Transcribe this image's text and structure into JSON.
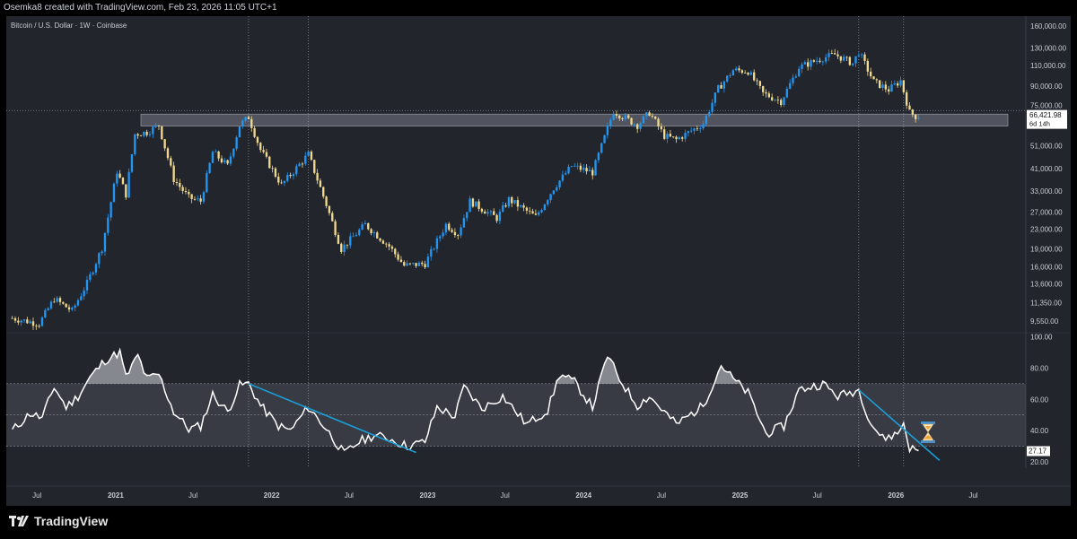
{
  "header": {
    "text": "Osemka8 created with TradingView.com, Feb 23, 2026 11:05 UTC+1"
  },
  "branding": {
    "logo_text": "TradingView"
  },
  "chart_data": [
    {
      "type": "candlestick",
      "legend": "Bitcoin / U.S. Dollar · 1W · Coinbase",
      "y_scale": "log",
      "y_ticks": [
        {
          "value": 160000,
          "label": "160,000.00"
        },
        {
          "value": 130000,
          "label": "130,000.00"
        },
        {
          "value": 110000,
          "label": "110,000.00"
        },
        {
          "value": 90000,
          "label": "90,000.00"
        },
        {
          "value": 75000,
          "label": "75,000.00"
        },
        {
          "value": 51000,
          "label": "51,000.00"
        },
        {
          "value": 41000,
          "label": "41,000.00"
        },
        {
          "value": 33000,
          "label": "33,000.00"
        },
        {
          "value": 27000,
          "label": "27,000.00"
        },
        {
          "value": 23000,
          "label": "23,000.00"
        },
        {
          "value": 19000,
          "label": "19,000.00"
        },
        {
          "value": 16000,
          "label": "16,000.00"
        },
        {
          "value": 13600,
          "label": "13,600.00"
        },
        {
          "value": 11350,
          "label": "11,350.00"
        },
        {
          "value": 9550,
          "label": "9,550.00"
        }
      ],
      "last_price": {
        "value": 66421.98,
        "label": "66,421.98",
        "countdown": "6d 14h"
      },
      "support_zone": {
        "from": 61500,
        "to": 69000
      },
      "colors": {
        "up": "#2196f3",
        "down": "#f0d98c",
        "zone": "#787b86"
      },
      "price_path": [
        {
          "date": "2020-05-04",
          "close": 9800
        },
        {
          "date": "2020-07-06",
          "close": 9300
        },
        {
          "date": "2020-08-10",
          "close": 11800
        },
        {
          "date": "2020-09-21",
          "close": 10500
        },
        {
          "date": "2020-10-26",
          "close": 13700
        },
        {
          "date": "2020-11-30",
          "close": 19200
        },
        {
          "date": "2021-01-04",
          "close": 40000
        },
        {
          "date": "2021-01-25",
          "close": 32000
        },
        {
          "date": "2021-02-15",
          "close": 57000
        },
        {
          "date": "2021-03-15",
          "close": 58000
        },
        {
          "date": "2021-04-12",
          "close": 62000
        },
        {
          "date": "2021-05-17",
          "close": 37000
        },
        {
          "date": "2021-06-21",
          "close": 31000
        },
        {
          "date": "2021-07-19",
          "close": 30000
        },
        {
          "date": "2021-08-16",
          "close": 48000
        },
        {
          "date": "2021-09-20",
          "close": 42000
        },
        {
          "date": "2021-10-18",
          "close": 62000
        },
        {
          "date": "2021-11-08",
          "close": 67000
        },
        {
          "date": "2021-12-06",
          "close": 49000
        },
        {
          "date": "2022-01-24",
          "close": 35000
        },
        {
          "date": "2022-03-28",
          "close": 47000
        },
        {
          "date": "2022-05-09",
          "close": 29000
        },
        {
          "date": "2022-06-13",
          "close": 19000
        },
        {
          "date": "2022-08-08",
          "close": 24000
        },
        {
          "date": "2022-10-03",
          "close": 19500
        },
        {
          "date": "2022-11-07",
          "close": 16200
        },
        {
          "date": "2022-12-26",
          "close": 16500
        },
        {
          "date": "2023-02-13",
          "close": 24000
        },
        {
          "date": "2023-03-13",
          "close": 22000
        },
        {
          "date": "2023-04-10",
          "close": 30000
        },
        {
          "date": "2023-06-12",
          "close": 25500
        },
        {
          "date": "2023-07-10",
          "close": 30500
        },
        {
          "date": "2023-09-11",
          "close": 25800
        },
        {
          "date": "2023-10-23",
          "close": 34000
        },
        {
          "date": "2023-12-04",
          "close": 42000
        },
        {
          "date": "2024-01-22",
          "close": 39500
        },
        {
          "date": "2024-03-11",
          "close": 71000
        },
        {
          "date": "2024-05-06",
          "close": 62000
        },
        {
          "date": "2024-06-03",
          "close": 70000
        },
        {
          "date": "2024-07-08",
          "close": 56000
        },
        {
          "date": "2024-08-05",
          "close": 54000
        },
        {
          "date": "2024-10-07",
          "close": 63000
        },
        {
          "date": "2024-11-11",
          "close": 88000
        },
        {
          "date": "2024-12-16",
          "close": 105000
        },
        {
          "date": "2025-01-20",
          "close": 104000
        },
        {
          "date": "2025-02-24",
          "close": 84000
        },
        {
          "date": "2025-04-07",
          "close": 78000
        },
        {
          "date": "2025-05-19",
          "close": 108000
        },
        {
          "date": "2025-07-14",
          "close": 118000
        },
        {
          "date": "2025-08-11",
          "close": 122000
        },
        {
          "date": "2025-09-22",
          "close": 112000
        },
        {
          "date": "2025-10-06",
          "close": 125000
        },
        {
          "date": "2025-11-10",
          "close": 94000
        },
        {
          "date": "2025-12-15",
          "close": 87000
        },
        {
          "date": "2026-01-12",
          "close": 95000
        },
        {
          "date": "2026-02-02",
          "close": 70000
        },
        {
          "date": "2026-02-23",
          "close": 66421.98
        }
      ]
    },
    {
      "type": "line",
      "indicator": "oscillator",
      "y_range": [
        20,
        100
      ],
      "y_ticks": [
        {
          "value": 100,
          "label": "100.00"
        },
        {
          "value": 80,
          "label": "80.00"
        },
        {
          "value": 60,
          "label": "60.00"
        },
        {
          "value": 40,
          "label": "40.00"
        },
        {
          "value": 20,
          "label": "20.00"
        }
      ],
      "last_value": {
        "value": 27.17,
        "label": "27.17"
      },
      "band": {
        "upper": 70,
        "middle": 50,
        "lower": 30
      },
      "overbought_threshold": 70,
      "colors": {
        "line": "#ffffff",
        "trendline": "#1aa0d8",
        "band": "#4a4d57"
      },
      "series": [
        {
          "date": "2020-05-04",
          "value": 40
        },
        {
          "date": "2020-06-15",
          "value": 51
        },
        {
          "date": "2020-07-13",
          "value": 48
        },
        {
          "date": "2020-08-10",
          "value": 68
        },
        {
          "date": "2020-09-07",
          "value": 55
        },
        {
          "date": "2020-10-05",
          "value": 62
        },
        {
          "date": "2020-11-02",
          "value": 74
        },
        {
          "date": "2020-12-07",
          "value": 85
        },
        {
          "date": "2021-01-11",
          "value": 90
        },
        {
          "date": "2021-01-25",
          "value": 74
        },
        {
          "date": "2021-02-22",
          "value": 88
        },
        {
          "date": "2021-03-15",
          "value": 73
        },
        {
          "date": "2021-04-12",
          "value": 76
        },
        {
          "date": "2021-05-17",
          "value": 52
        },
        {
          "date": "2021-06-21",
          "value": 41
        },
        {
          "date": "2021-07-19",
          "value": 43
        },
        {
          "date": "2021-08-16",
          "value": 63
        },
        {
          "date": "2021-09-20",
          "value": 52
        },
        {
          "date": "2021-10-18",
          "value": 69
        },
        {
          "date": "2021-11-08",
          "value": 70
        },
        {
          "date": "2021-12-06",
          "value": 56
        },
        {
          "date": "2022-01-17",
          "value": 43
        },
        {
          "date": "2022-02-14",
          "value": 40
        },
        {
          "date": "2022-03-28",
          "value": 55
        },
        {
          "date": "2022-05-09",
          "value": 41
        },
        {
          "date": "2022-06-20",
          "value": 25
        },
        {
          "date": "2022-07-25",
          "value": 33
        },
        {
          "date": "2022-08-29",
          "value": 37
        },
        {
          "date": "2022-10-03",
          "value": 35
        },
        {
          "date": "2022-11-14",
          "value": 30
        },
        {
          "date": "2022-12-26",
          "value": 33
        },
        {
          "date": "2023-01-23",
          "value": 55
        },
        {
          "date": "2023-03-06",
          "value": 49
        },
        {
          "date": "2023-03-27",
          "value": 68
        },
        {
          "date": "2023-05-08",
          "value": 54
        },
        {
          "date": "2023-06-26",
          "value": 62
        },
        {
          "date": "2023-08-21",
          "value": 44
        },
        {
          "date": "2023-10-09",
          "value": 53
        },
        {
          "date": "2023-11-06",
          "value": 76
        },
        {
          "date": "2023-12-11",
          "value": 71
        },
        {
          "date": "2024-01-22",
          "value": 55
        },
        {
          "date": "2024-02-26",
          "value": 88
        },
        {
          "date": "2024-03-25",
          "value": 73
        },
        {
          "date": "2024-05-06",
          "value": 56
        },
        {
          "date": "2024-06-03",
          "value": 62
        },
        {
          "date": "2024-08-05",
          "value": 44
        },
        {
          "date": "2024-10-07",
          "value": 56
        },
        {
          "date": "2024-11-18",
          "value": 82
        },
        {
          "date": "2024-12-16",
          "value": 73
        },
        {
          "date": "2025-01-20",
          "value": 64
        },
        {
          "date": "2025-03-03",
          "value": 38
        },
        {
          "date": "2025-04-14",
          "value": 43
        },
        {
          "date": "2025-05-19",
          "value": 66
        },
        {
          "date": "2025-07-14",
          "value": 70
        },
        {
          "date": "2025-08-18",
          "value": 62
        },
        {
          "date": "2025-10-06",
          "value": 66
        },
        {
          "date": "2025-11-03",
          "value": 45
        },
        {
          "date": "2025-12-01",
          "value": 35
        },
        {
          "date": "2026-01-05",
          "value": 38
        },
        {
          "date": "2026-01-19",
          "value": 45
        },
        {
          "date": "2026-02-02",
          "value": 29
        },
        {
          "date": "2026-02-23",
          "value": 27.17
        }
      ],
      "trendlines": [
        {
          "from": {
            "date": "2021-11-08",
            "value": 70
          },
          "to": {
            "date": "2022-12-05",
            "value": 26
          }
        },
        {
          "from": {
            "date": "2025-10-06",
            "value": 66
          },
          "to": {
            "date": "2026-04-13",
            "value": 21
          }
        }
      ],
      "icon": "hourglass-icon"
    }
  ],
  "time_axis": {
    "ticks": [
      {
        "date": "2020-07-01",
        "label": "Jul"
      },
      {
        "date": "2021-01-01",
        "label": "2021"
      },
      {
        "date": "2021-07-01",
        "label": "Jul"
      },
      {
        "date": "2022-01-01",
        "label": "2022"
      },
      {
        "date": "2022-07-01",
        "label": "Jul"
      },
      {
        "date": "2023-01-01",
        "label": "2023"
      },
      {
        "date": "2023-07-01",
        "label": "Jul"
      },
      {
        "date": "2024-01-01",
        "label": "2024"
      },
      {
        "date": "2024-07-01",
        "label": "Jul"
      },
      {
        "date": "2025-01-01",
        "label": "2025"
      },
      {
        "date": "2025-07-01",
        "label": "Jul"
      },
      {
        "date": "2026-01-01",
        "label": "2026"
      },
      {
        "date": "2026-07-01",
        "label": "Jul"
      }
    ],
    "marker_dates": [
      "2021-11-08",
      "2022-03-28",
      "2025-10-06",
      "2026-01-19"
    ]
  }
}
